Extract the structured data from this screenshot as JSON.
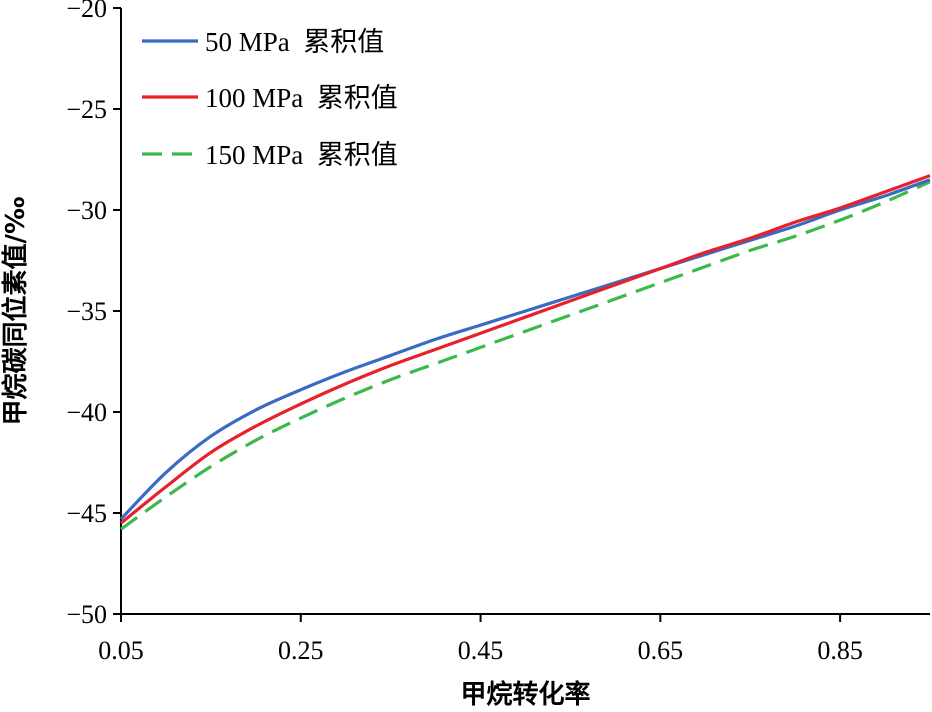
{
  "chart_data": {
    "type": "line",
    "xlabel": "甲烷转化率",
    "ylabel": "甲烷碳同位素值/‰",
    "xlim": [
      0.05,
      0.95
    ],
    "ylim": [
      -50,
      -20
    ],
    "xticks": [
      0.05,
      0.25,
      0.45,
      0.65,
      0.85
    ],
    "xtick_labels": [
      "0.05",
      "0.25",
      "0.45",
      "0.65",
      "0.85"
    ],
    "yticks": [
      -20,
      -25,
      -30,
      -35,
      -40,
      -45,
      -50
    ],
    "ytick_labels": [
      "−20",
      "−25",
      "−30",
      "−35",
      "−40",
      "−45",
      "−50"
    ],
    "grid": false,
    "legend_position": "top-left",
    "series": [
      {
        "name": "50 MPa  累积值",
        "color": "#3a6bc4",
        "dash": "solid",
        "x": [
          0.05,
          0.1,
          0.15,
          0.2,
          0.25,
          0.3,
          0.35,
          0.4,
          0.45,
          0.5,
          0.55,
          0.6,
          0.65,
          0.7,
          0.75,
          0.8,
          0.85,
          0.9,
          0.95
        ],
        "y": [
          -45.3,
          -43.0,
          -41.2,
          -39.9,
          -38.9,
          -38.0,
          -37.2,
          -36.4,
          -35.7,
          -35.0,
          -34.3,
          -33.6,
          -32.9,
          -32.2,
          -31.5,
          -30.8,
          -30.0,
          -29.3,
          -28.5
        ]
      },
      {
        "name": "100 MPa  累积值",
        "color": "#e8202a",
        "dash": "solid",
        "x": [
          0.05,
          0.1,
          0.15,
          0.2,
          0.25,
          0.3,
          0.35,
          0.4,
          0.45,
          0.5,
          0.55,
          0.6,
          0.65,
          0.7,
          0.75,
          0.8,
          0.85,
          0.9,
          0.95
        ],
        "y": [
          -45.5,
          -43.7,
          -42.0,
          -40.7,
          -39.6,
          -38.6,
          -37.7,
          -36.9,
          -36.1,
          -35.3,
          -34.5,
          -33.7,
          -32.9,
          -32.1,
          -31.4,
          -30.6,
          -29.9,
          -29.1,
          -28.3
        ]
      },
      {
        "name": "150 MPa  累积值",
        "color": "#3db84a",
        "dash": "dashed",
        "x": [
          0.05,
          0.1,
          0.15,
          0.2,
          0.25,
          0.3,
          0.35,
          0.4,
          0.45,
          0.5,
          0.55,
          0.6,
          0.65,
          0.7,
          0.75,
          0.8,
          0.85,
          0.9,
          0.95
        ],
        "y": [
          -45.8,
          -44.2,
          -42.7,
          -41.4,
          -40.3,
          -39.3,
          -38.4,
          -37.6,
          -36.8,
          -36.0,
          -35.2,
          -34.4,
          -33.6,
          -32.8,
          -32.0,
          -31.3,
          -30.5,
          -29.6,
          -28.6
        ]
      }
    ]
  }
}
